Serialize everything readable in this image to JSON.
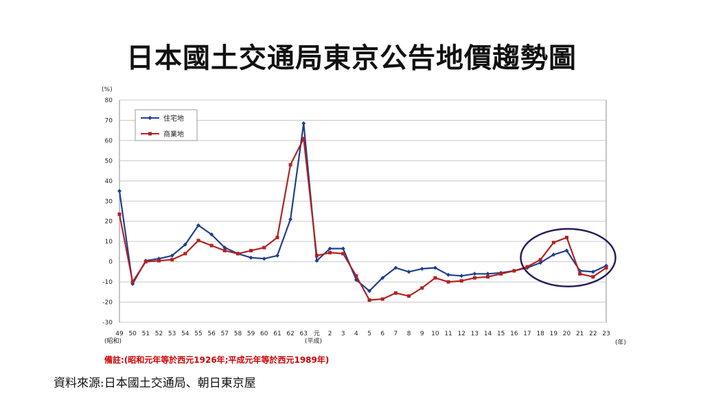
{
  "slide": {
    "title": "日本國土交通局東京公告地價趨勢圖",
    "note": "備註:(昭和元年等於西元1926年;平成元年等於西元1989年)",
    "source": "資料來源:日本國土交通局、朝日東京屋"
  },
  "colors": {
    "residential": "#1f3f8f",
    "commercial": "#b22222",
    "highlight": "#2b1b5a"
  },
  "chart_data": {
    "type": "line",
    "y_unit": "(%)",
    "x_unit": "(年)",
    "era_showa": "(昭和)",
    "era_heisei": "(平成)",
    "ylim": [
      -30,
      80
    ],
    "yticks": [
      80,
      70,
      60,
      50,
      40,
      30,
      20,
      10,
      0,
      -10,
      -20,
      -30
    ],
    "grid": true,
    "legend_position": "top-left",
    "x": [
      "49",
      "50",
      "51",
      "52",
      "53",
      "54",
      "55",
      "56",
      "57",
      "58",
      "59",
      "60",
      "61",
      "62",
      "63",
      "元",
      "2",
      "3",
      "4",
      "5",
      "6",
      "7",
      "8",
      "9",
      "10",
      "11",
      "12",
      "13",
      "14",
      "15",
      "16",
      "17",
      "18",
      "19",
      "20",
      "21",
      "22",
      "23"
    ],
    "series": [
      {
        "name": "住宅地",
        "values": [
          35,
          -11,
          0.5,
          1.5,
          3,
          8.5,
          18,
          13.5,
          7,
          4,
          2,
          1.5,
          3,
          21,
          68.5,
          0.5,
          6.5,
          6.5,
          -9,
          -14.5,
          -8,
          -3,
          -5,
          -3.5,
          -3,
          -6.5,
          -7,
          -6,
          -6,
          -5.5,
          -4.5,
          -3,
          -0.5,
          3.5,
          5.5,
          -4.5,
          -5,
          -2
        ]
      },
      {
        "name": "商業地",
        "values": [
          23.5,
          -10,
          0,
          0.5,
          1,
          4,
          10.5,
          8,
          5.5,
          4,
          5.5,
          7,
          12,
          48,
          61,
          3,
          4.5,
          4,
          -7,
          -19,
          -18.5,
          -15.5,
          -17,
          -13,
          -8,
          -10,
          -9.5,
          -8,
          -7.5,
          -6,
          -4.5,
          -2.5,
          1,
          9.5,
          12,
          -6,
          -7.5,
          -3
        ]
      }
    ]
  }
}
